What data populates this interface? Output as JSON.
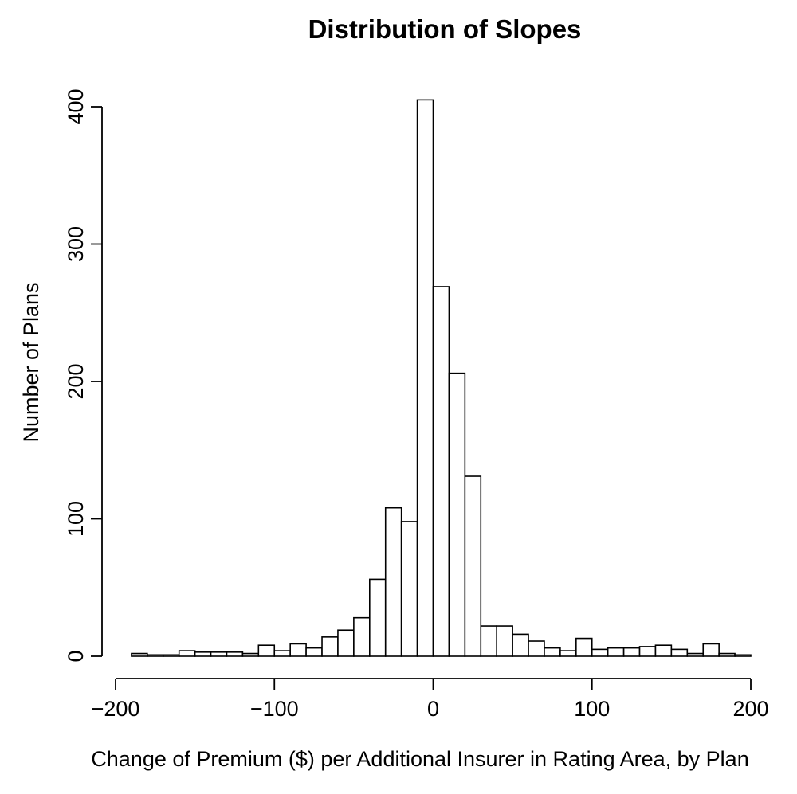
{
  "chart_data": {
    "type": "bar",
    "title": "Distribution of Slopes",
    "xlabel": "Change of Premium ($) per Additional Insurer in Rating Area, by Plan",
    "ylabel": "Number of Plans",
    "xlim": [
      -200,
      200
    ],
    "ylim": [
      0,
      400
    ],
    "xticks": [
      -200,
      -100,
      0,
      100,
      200
    ],
    "xtick_labels": [
      "−200",
      "−100",
      "0",
      "100",
      "200"
    ],
    "yticks": [
      0,
      100,
      200,
      300,
      400
    ],
    "ytick_labels": [
      "0",
      "100",
      "200",
      "300",
      "400"
    ],
    "grid": false,
    "bin_edges": [
      -190,
      -180,
      -170,
      -160,
      -150,
      -140,
      -130,
      -120,
      -110,
      -100,
      -90,
      -80,
      -70,
      -60,
      -50,
      -40,
      -30,
      -20,
      -10,
      0,
      10,
      20,
      30,
      40,
      50,
      60,
      70,
      80,
      90,
      100,
      110,
      120,
      130,
      140,
      150,
      160,
      170,
      180,
      190,
      200
    ],
    "values": [
      2,
      1,
      1,
      4,
      3,
      3,
      3,
      2,
      8,
      4,
      9,
      6,
      14,
      19,
      28,
      56,
      108,
      98,
      405,
      269,
      206,
      131,
      22,
      22,
      16,
      11,
      6,
      4,
      13,
      5,
      6,
      6,
      7,
      8,
      5,
      2,
      9,
      2,
      1
    ]
  }
}
